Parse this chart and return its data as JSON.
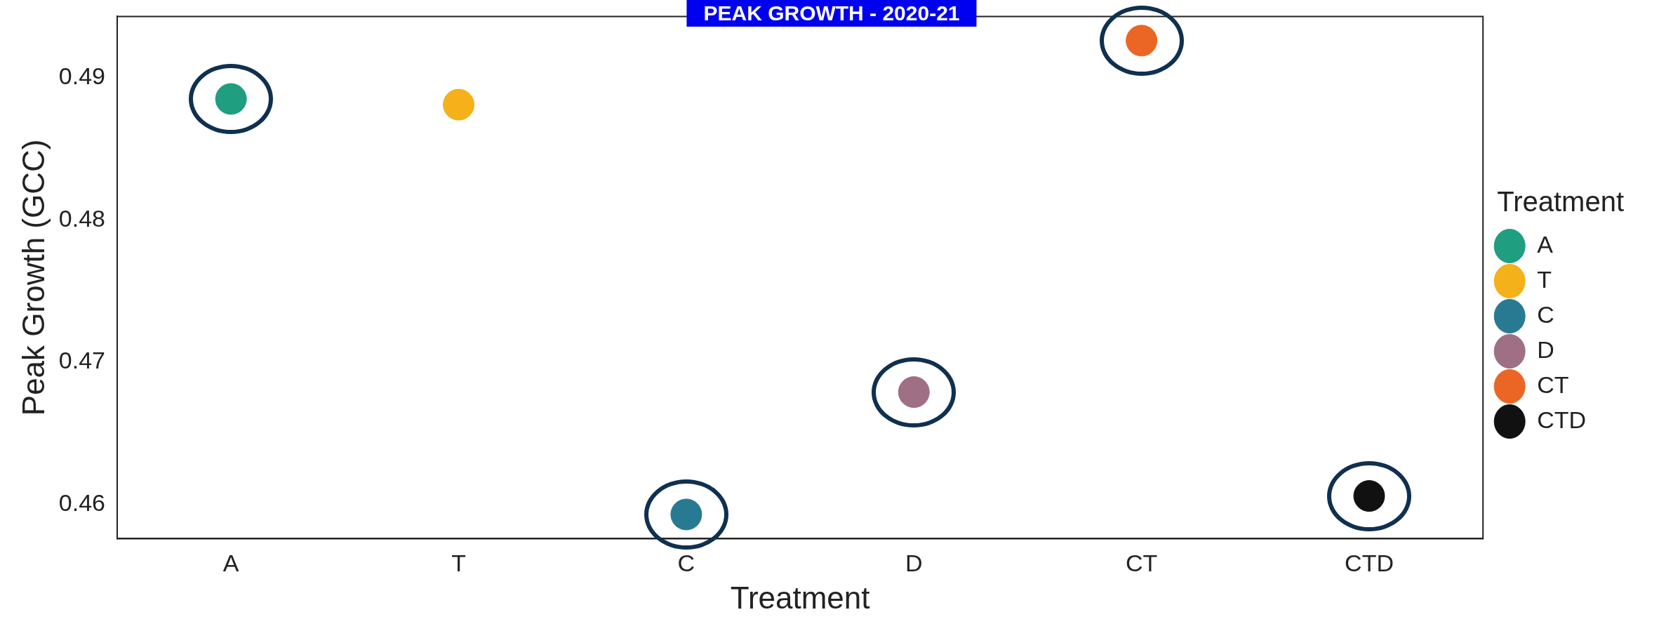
{
  "chart_data": {
    "type": "scatter",
    "title": "PEAK GROWTH - 2020-21",
    "xlabel": "Treatment",
    "ylabel": "Peak Growth (GCC)",
    "legend_title": "Treatment",
    "categories": [
      "A",
      "T",
      "C",
      "D",
      "CT",
      "CTD"
    ],
    "series": [
      {
        "name": "A",
        "color": "#1f9e80",
        "x": [
          "A"
        ],
        "values": [
          0.4885
        ]
      },
      {
        "name": "T",
        "color": "#f5b11a",
        "x": [
          "T"
        ],
        "values": [
          0.4881
        ]
      },
      {
        "name": "C",
        "color": "#287a92",
        "x": [
          "C"
        ],
        "values": [
          0.4593
        ]
      },
      {
        "name": "D",
        "color": "#9e6f85",
        "x": [
          "D"
        ],
        "values": [
          0.4679
        ]
      },
      {
        "name": "CT",
        "color": "#eb6625",
        "x": [
          "CT"
        ],
        "values": [
          0.4926
        ]
      },
      {
        "name": "CTD",
        "color": "#111111",
        "x": [
          "CTD"
        ],
        "values": [
          0.4606
        ]
      }
    ],
    "ylim": [
      0.4576,
      0.4943
    ],
    "yticks": [
      0.46,
      0.47,
      0.48,
      0.49
    ],
    "grid": false,
    "legend": "right",
    "marker": "circle"
  }
}
